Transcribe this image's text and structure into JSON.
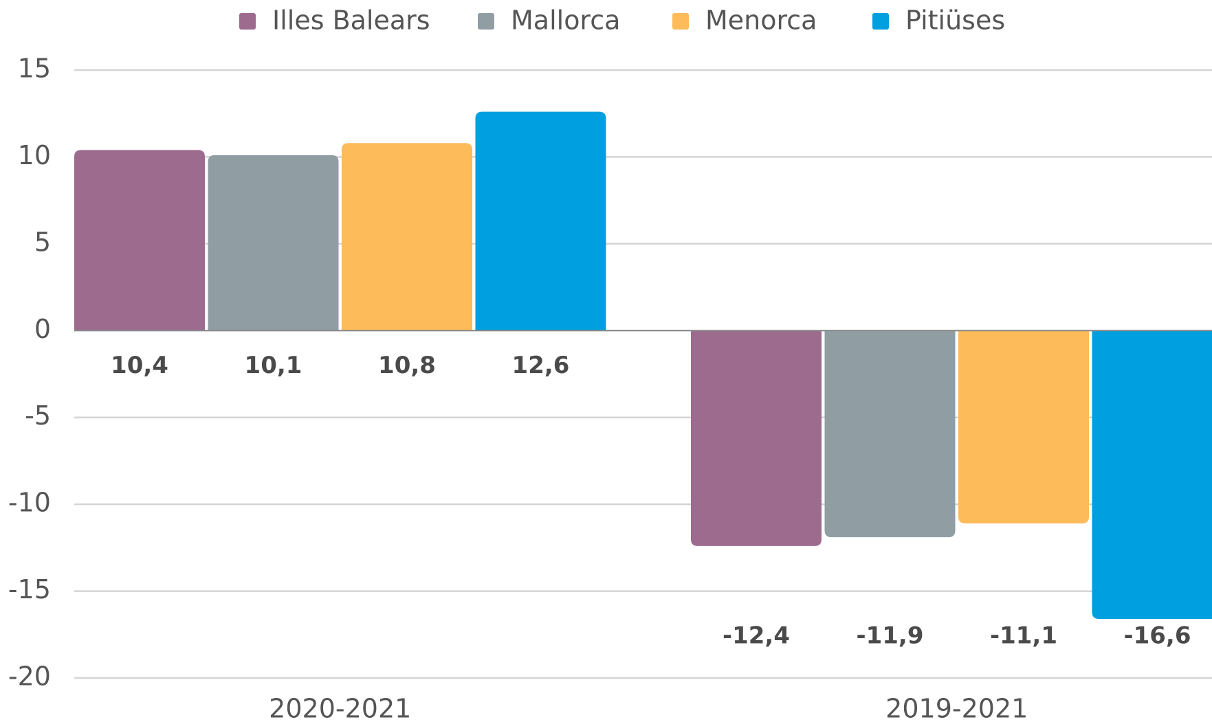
{
  "chart_data": {
    "type": "bar",
    "categories": [
      "2020-2021",
      "2019-2021"
    ],
    "series": [
      {
        "name": "Illes Balears",
        "color": "#9c6b8e",
        "values": [
          10.4,
          -12.4
        ],
        "value_labels": [
          "10,4",
          "-12,4"
        ]
      },
      {
        "name": "Mallorca",
        "color": "#909ea4",
        "values": [
          10.1,
          -11.9
        ],
        "value_labels": [
          "10,1",
          "-11,9"
        ]
      },
      {
        "name": "Menorca",
        "color": "#fdbb5a",
        "values": [
          10.8,
          -11.1
        ],
        "value_labels": [
          "10,8",
          "-11,1"
        ]
      },
      {
        "name": "Pitiüses",
        "color": "#009fdf",
        "values": [
          12.6,
          -16.6
        ],
        "value_labels": [
          "12,6",
          "-16,6"
        ]
      }
    ],
    "ylim": [
      -20,
      15
    ],
    "yticks": [
      -20,
      -15,
      -10,
      -5,
      0,
      5,
      10,
      15
    ],
    "grid": true,
    "legend": "top"
  }
}
